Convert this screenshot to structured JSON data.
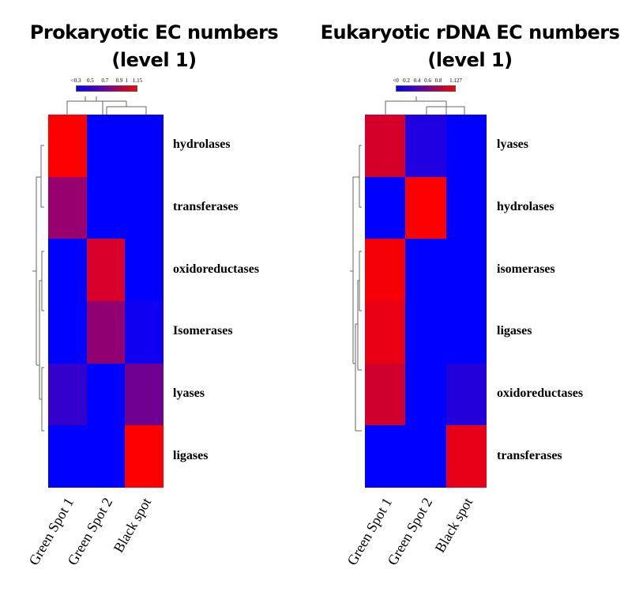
{
  "chart_data": [
    {
      "type": "heatmap",
      "title": "Prokaryotic EC numbers (level 1)",
      "title_line1": "Prokaryotic EC numbers",
      "title_line2": "(level 1)",
      "columns": [
        "Green Spot 1",
        "Green Spot 2",
        "Black spot"
      ],
      "rows": [
        "hydrolases",
        "transferases",
        "oxidoreductases",
        "Isomerases",
        "lyases",
        "ligases"
      ],
      "color_scale": {
        "ticks": [
          "<0.3",
          "0.5",
          "0.7",
          "0.9",
          "1",
          "1.15"
        ],
        "min": 0.3,
        "max": 1.15,
        "low_color": "#0000ff",
        "high_color": "#ff0000"
      },
      "values": [
        [
          1.15,
          0.3,
          0.3
        ],
        [
          0.85,
          0.3,
          0.3
        ],
        [
          0.3,
          1.05,
          0.3
        ],
        [
          0.3,
          0.85,
          0.35
        ],
        [
          0.45,
          0.3,
          0.65
        ],
        [
          0.3,
          0.3,
          1.15
        ]
      ],
      "cell_colors": [
        [
          "#ff0000",
          "#0000ff",
          "#0000ff"
        ],
        [
          "#980070",
          "#0000ff",
          "#0000ff"
        ],
        [
          "#0000ff",
          "#d8002a",
          "#0000ff"
        ],
        [
          "#0000ff",
          "#900070",
          "#1000f0"
        ],
        [
          "#3400cc",
          "#0000ff",
          "#700090"
        ],
        [
          "#0000ff",
          "#0000ff",
          "#ff0000"
        ]
      ],
      "column_dendrogram": "(Green Spot 1, (Green Spot 2, Black spot))",
      "row_dendrogram": "((hydrolases, transferases), ((oxidoreductases, Isomerases), (lyases, ligases)))"
    },
    {
      "type": "heatmap",
      "title": "Eukaryotic rDNA EC numbers (level 1)",
      "title_line1": "Eukaryotic rDNA EC numbers",
      "title_line2": "(level 1)",
      "columns": [
        "Green Spot 1",
        "Green Spot 2",
        "Black spot"
      ],
      "rows": [
        "lyases",
        "hydrolases",
        "isomerases",
        "ligases",
        "oxidoreductases",
        "transferases"
      ],
      "color_scale": {
        "ticks": [
          "<0",
          "0.2",
          "0.4",
          "0.6",
          "0.8",
          "1.127"
        ],
        "min": 0,
        "max": 1.127,
        "low_color": "#0000ff",
        "high_color": "#ff0000"
      },
      "values": [
        [
          0.95,
          0.1,
          0.0
        ],
        [
          0.0,
          1.127,
          0.0
        ],
        [
          1.1,
          0.0,
          0.0
        ],
        [
          1.05,
          0.0,
          0.0
        ],
        [
          0.95,
          0.0,
          0.12
        ],
        [
          0.0,
          0.0,
          1.05
        ]
      ],
      "cell_colors": [
        [
          "#d4002a",
          "#2000e0",
          "#0000ff"
        ],
        [
          "#0000ff",
          "#ff0000",
          "#0000ff"
        ],
        [
          "#f60008",
          "#0000ff",
          "#0000ff"
        ],
        [
          "#ea0014",
          "#0000ff",
          "#0000ff"
        ],
        [
          "#d0002e",
          "#0000ff",
          "#2400d8"
        ],
        [
          "#0000ff",
          "#0000ff",
          "#e60018"
        ]
      ],
      "column_dendrogram": "(Green Spot 1, (Green Spot 2, Black spot))",
      "row_dendrogram": "((lyases, hydrolases), (((isomerases, ligases), oxidoreductases), transferases))"
    }
  ]
}
